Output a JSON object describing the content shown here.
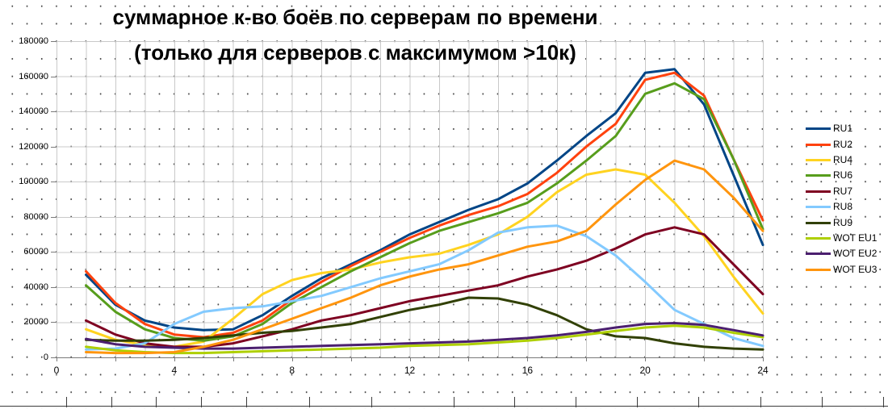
{
  "title": {
    "line1": "суммарное к-во боёв по серверам по времени",
    "line2": "(только для серверов с максимумом >10к)"
  },
  "colors": {
    "background": "#ffffff",
    "grid_major": "#c9c9c9",
    "grid_minor_dots": "#4a4a4a",
    "axis": "#7a7a7a",
    "text": "#000000"
  },
  "chart_data": {
    "type": "line",
    "title": "суммарное к-во боёв по серверам по времени",
    "subtitle": "(только для серверов с максимумом >10к)",
    "xlabel": "",
    "ylabel": "",
    "x_range": [
      0,
      24
    ],
    "y_range": [
      0,
      180000
    ],
    "x_ticks": [
      0,
      4,
      8,
      12,
      16,
      20,
      24
    ],
    "y_ticks": [
      0,
      20000,
      40000,
      60000,
      80000,
      100000,
      120000,
      140000,
      160000,
      180000
    ],
    "grid": "major gridlines solid light gray every 1h (x) and 20000 (y); minor grid rendered as dots",
    "legend_position": "right",
    "x_hours": [
      1,
      2,
      3,
      4,
      5,
      6,
      7,
      8,
      9,
      10,
      11,
      12,
      13,
      14,
      15,
      16,
      17,
      18,
      19,
      20,
      21,
      22,
      23,
      24
    ],
    "series": [
      {
        "name": "RU1",
        "color": "#004586",
        "values": [
          47000,
          30000,
          21000,
          17000,
          15500,
          16000,
          24000,
          35000,
          45000,
          53000,
          61000,
          70000,
          77000,
          84000,
          90000,
          99000,
          112000,
          126000,
          139000,
          162000,
          164000,
          144000,
          104000,
          64000
        ]
      },
      {
        "name": "RU2",
        "color": "#FF420E",
        "values": [
          49000,
          31000,
          19000,
          13000,
          11500,
          14000,
          21000,
          33000,
          43000,
          52000,
          60000,
          68000,
          75000,
          81000,
          86000,
          93000,
          105000,
          120000,
          133000,
          158000,
          162000,
          149000,
          113000,
          78000
        ]
      },
      {
        "name": "RU4",
        "color": "#FFD320",
        "values": [
          16000,
          10000,
          7000,
          6000,
          9000,
          22000,
          36000,
          44000,
          48000,
          50000,
          54000,
          57000,
          59000,
          64000,
          70000,
          80000,
          94000,
          104000,
          107000,
          104000,
          88000,
          69000,
          46000,
          25000
        ]
      },
      {
        "name": "RU6",
        "color": "#579D1C",
        "values": [
          41000,
          26000,
          16000,
          11000,
          9500,
          12000,
          19000,
          31000,
          40000,
          49000,
          57000,
          65000,
          72000,
          77000,
          82000,
          88000,
          99000,
          112000,
          126000,
          150000,
          156000,
          147000,
          113000,
          73000
        ]
      },
      {
        "name": "RU7",
        "color": "#7E0021",
        "values": [
          21000,
          13000,
          8000,
          6000,
          6000,
          8000,
          12000,
          16000,
          21000,
          24000,
          28000,
          32000,
          35000,
          38000,
          41000,
          46000,
          50000,
          55000,
          62000,
          70000,
          74000,
          70000,
          53000,
          36000
        ]
      },
      {
        "name": "RU8",
        "color": "#83CAFF",
        "values": [
          4500,
          5000,
          8000,
          19000,
          26000,
          28000,
          29000,
          32000,
          35000,
          40000,
          45000,
          49000,
          53000,
          61000,
          71000,
          74000,
          75000,
          69000,
          58000,
          43000,
          27000,
          19000,
          11000,
          6500
        ]
      },
      {
        "name": "RU9",
        "color": "#314004",
        "values": [
          10000,
          9500,
          9500,
          10000,
          11000,
          12500,
          14000,
          15000,
          17000,
          19000,
          23000,
          27000,
          30000,
          34000,
          33500,
          30000,
          24000,
          16000,
          12000,
          11000,
          8000,
          6000,
          5000,
          4500
        ]
      },
      {
        "name": "WOT EU1",
        "color": "#AECF00",
        "values": [
          6000,
          4000,
          3000,
          2500,
          2500,
          3000,
          3500,
          4000,
          4500,
          5000,
          5500,
          6500,
          7000,
          7500,
          8500,
          9500,
          11000,
          13000,
          15000,
          17000,
          18000,
          17000,
          14000,
          11500
        ]
      },
      {
        "name": "WOT EU2",
        "color": "#4B1F6F",
        "values": [
          10500,
          7500,
          6000,
          5500,
          5000,
          5000,
          5500,
          6000,
          6500,
          7000,
          7500,
          8000,
          8500,
          9000,
          10000,
          11000,
          12500,
          14500,
          17000,
          19000,
          19500,
          18500,
          15500,
          12500
        ]
      },
      {
        "name": "WOT EU3",
        "color": "#FF950E",
        "values": [
          3000,
          2500,
          2500,
          3000,
          6000,
          10000,
          16000,
          22000,
          28000,
          34000,
          41000,
          46000,
          50000,
          53000,
          58000,
          63000,
          66000,
          72000,
          87000,
          101000,
          112000,
          107000,
          91000,
          72000
        ]
      }
    ]
  }
}
